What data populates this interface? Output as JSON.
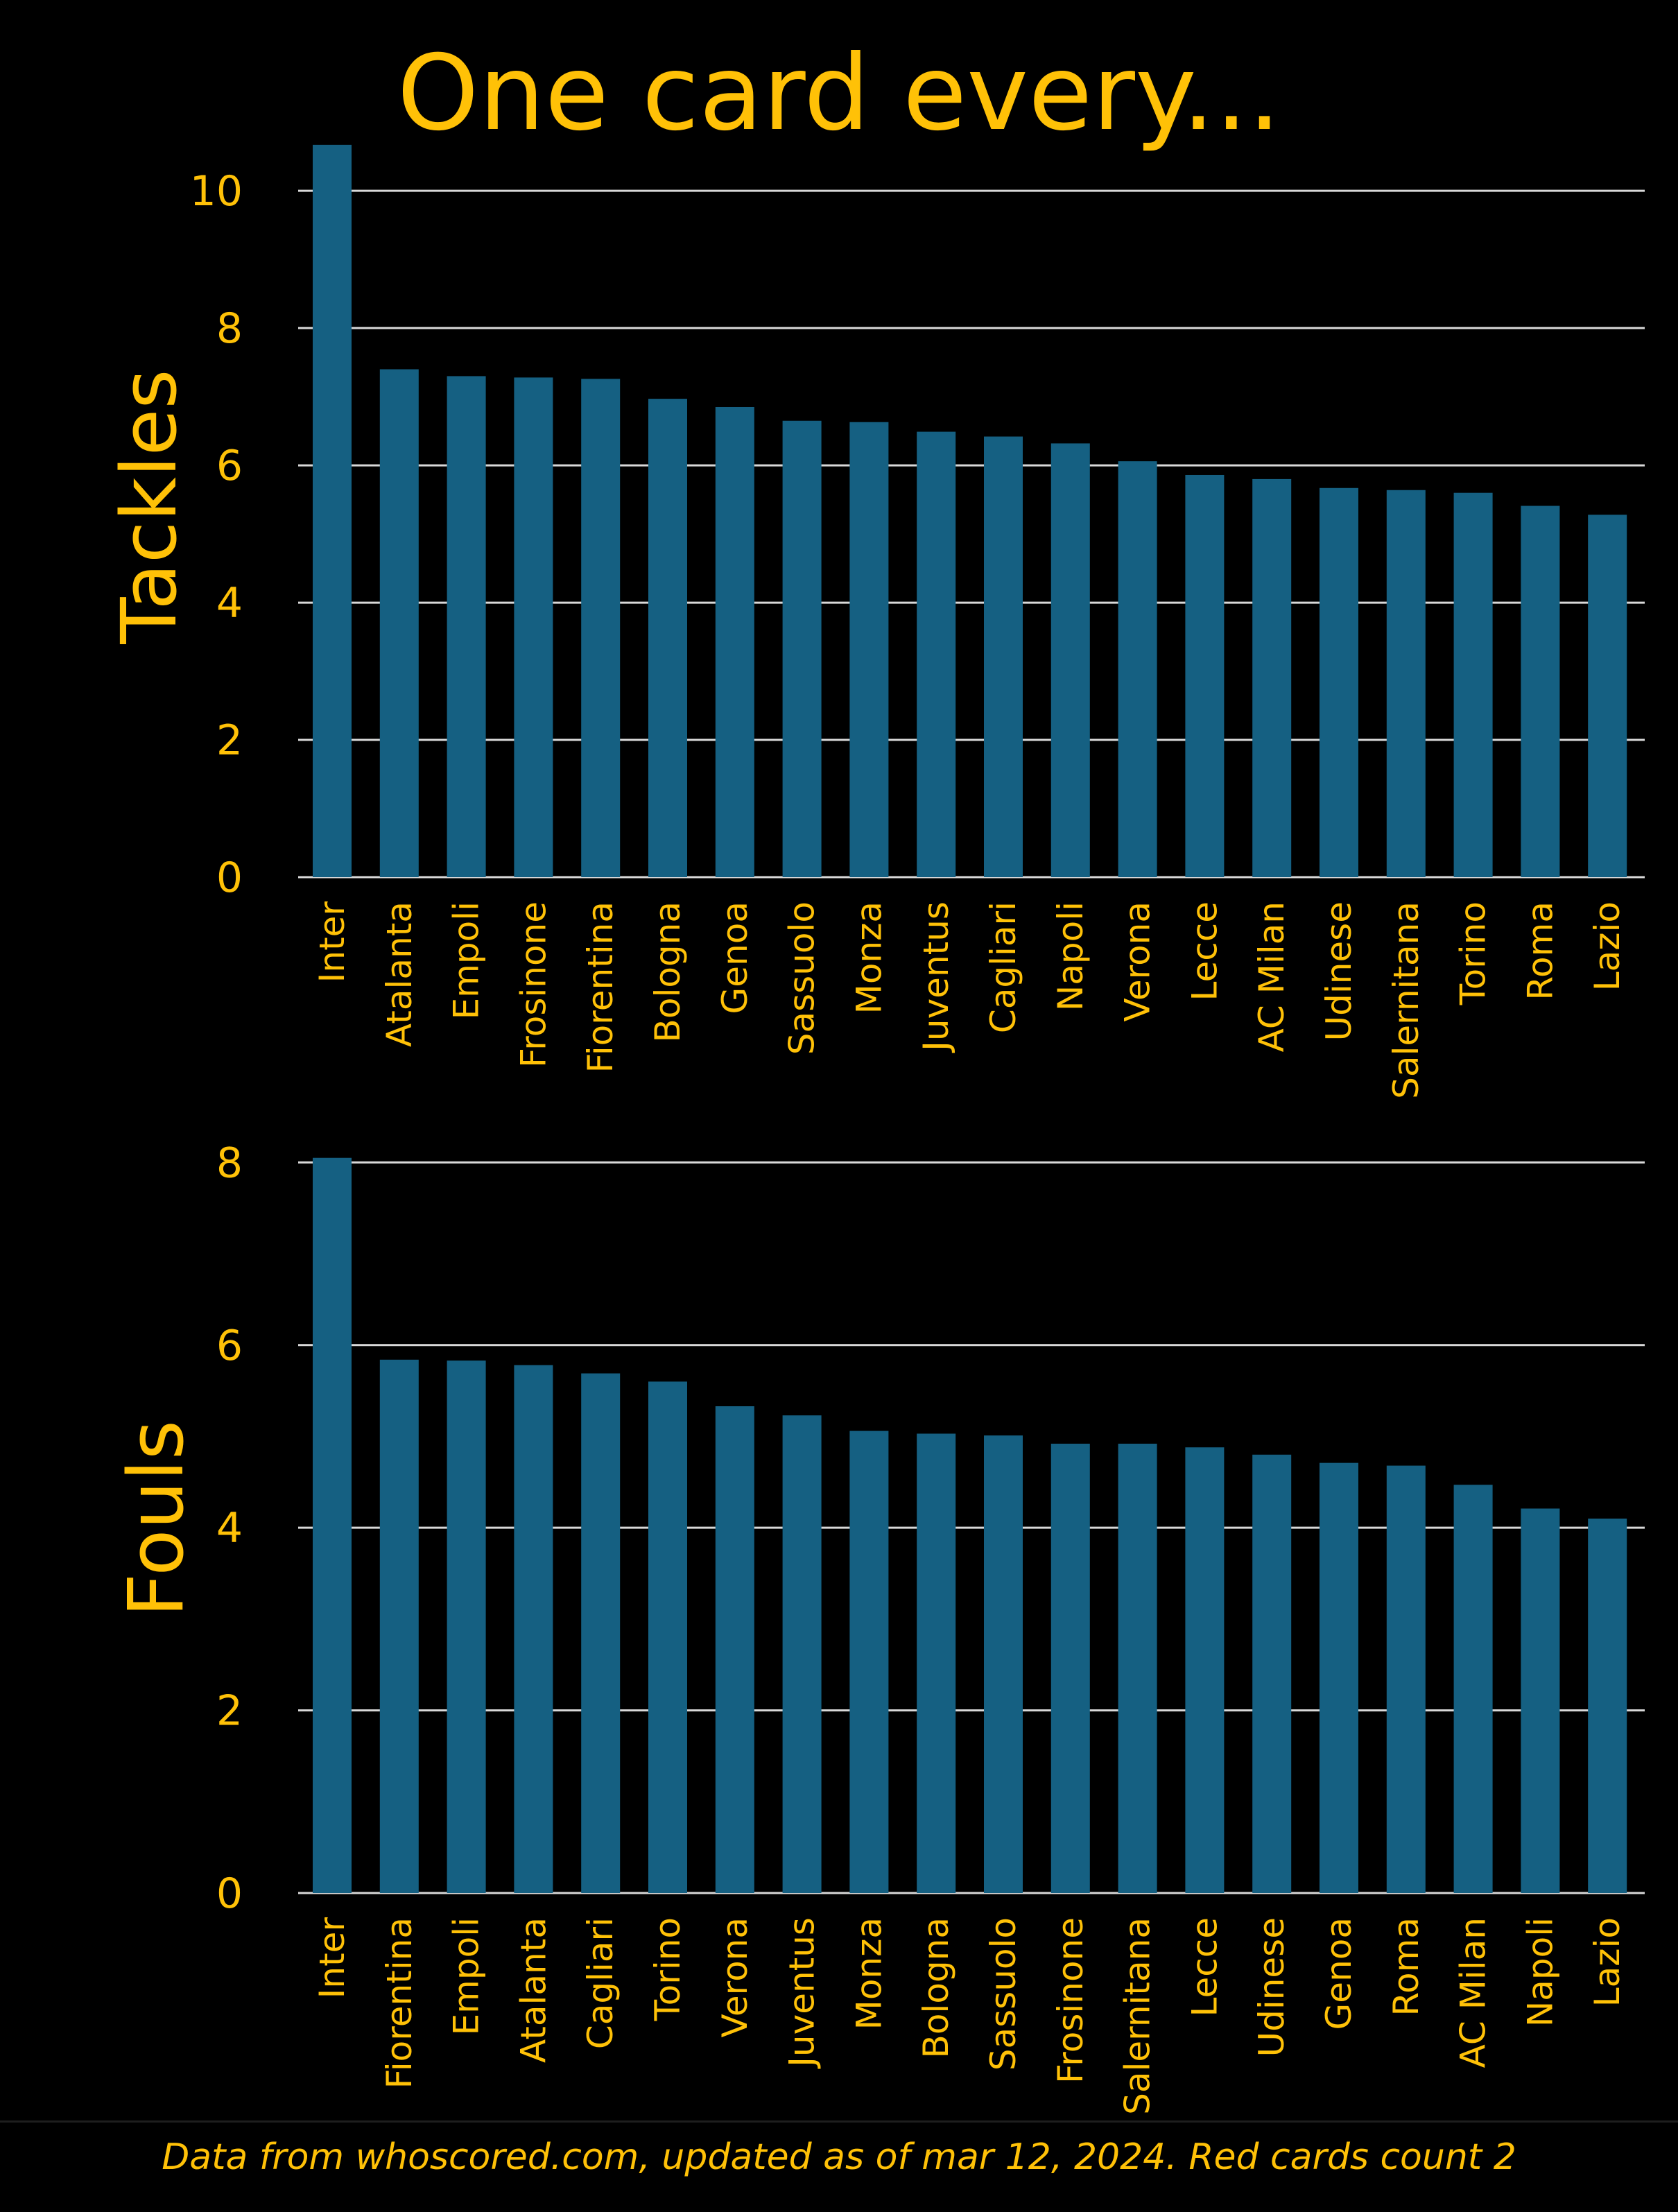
{
  "title": "One card every...",
  "footer": "Data from whoscored.com, updated as of mar 12, 2024. Red cards count 2",
  "colors": {
    "background": "#000000",
    "text": "#FFC107",
    "bar": "#156082",
    "grid": "#D9D9D9"
  },
  "chart_data": [
    {
      "type": "bar",
      "ylabel": "Tackles",
      "ylim": [
        0,
        10.8
      ],
      "yticks": [
        0,
        2,
        4,
        6,
        8,
        10
      ],
      "grid": true,
      "categories": [
        "Inter",
        "Atalanta",
        "Empoli",
        "Frosinone",
        "Fiorentina",
        "Bologna",
        "Genoa",
        "Sassuolo",
        "Monza",
        "Juventus",
        "Cagliari",
        "Napoli",
        "Verona",
        "Lecce",
        "AC Milan",
        "Udinese",
        "Salernitana",
        "Torino",
        "Roma",
        "Lazio"
      ],
      "values": [
        10.67,
        7.4,
        7.3,
        7.28,
        7.26,
        6.97,
        6.85,
        6.65,
        6.63,
        6.49,
        6.42,
        6.32,
        6.06,
        5.86,
        5.8,
        5.67,
        5.64,
        5.6,
        5.41,
        5.28
      ]
    },
    {
      "type": "bar",
      "ylabel": "Fouls",
      "ylim": [
        0,
        8.2
      ],
      "yticks": [
        0,
        2,
        4,
        6,
        8
      ],
      "grid": true,
      "categories": [
        "Inter",
        "Fiorentina",
        "Empoli",
        "Atalanta",
        "Cagliari",
        "Torino",
        "Verona",
        "Juventus",
        "Monza",
        "Bologna",
        "Sassuolo",
        "Frosinone",
        "Salernitana",
        "Lecce",
        "Udinese",
        "Genoa",
        "Roma",
        "AC Milan",
        "Napoli",
        "Lazio"
      ],
      "values": [
        8.05,
        5.84,
        5.83,
        5.78,
        5.69,
        5.6,
        5.33,
        5.23,
        5.06,
        5.03,
        5.01,
        4.92,
        4.92,
        4.88,
        4.8,
        4.71,
        4.68,
        4.47,
        4.21,
        4.1
      ]
    }
  ]
}
